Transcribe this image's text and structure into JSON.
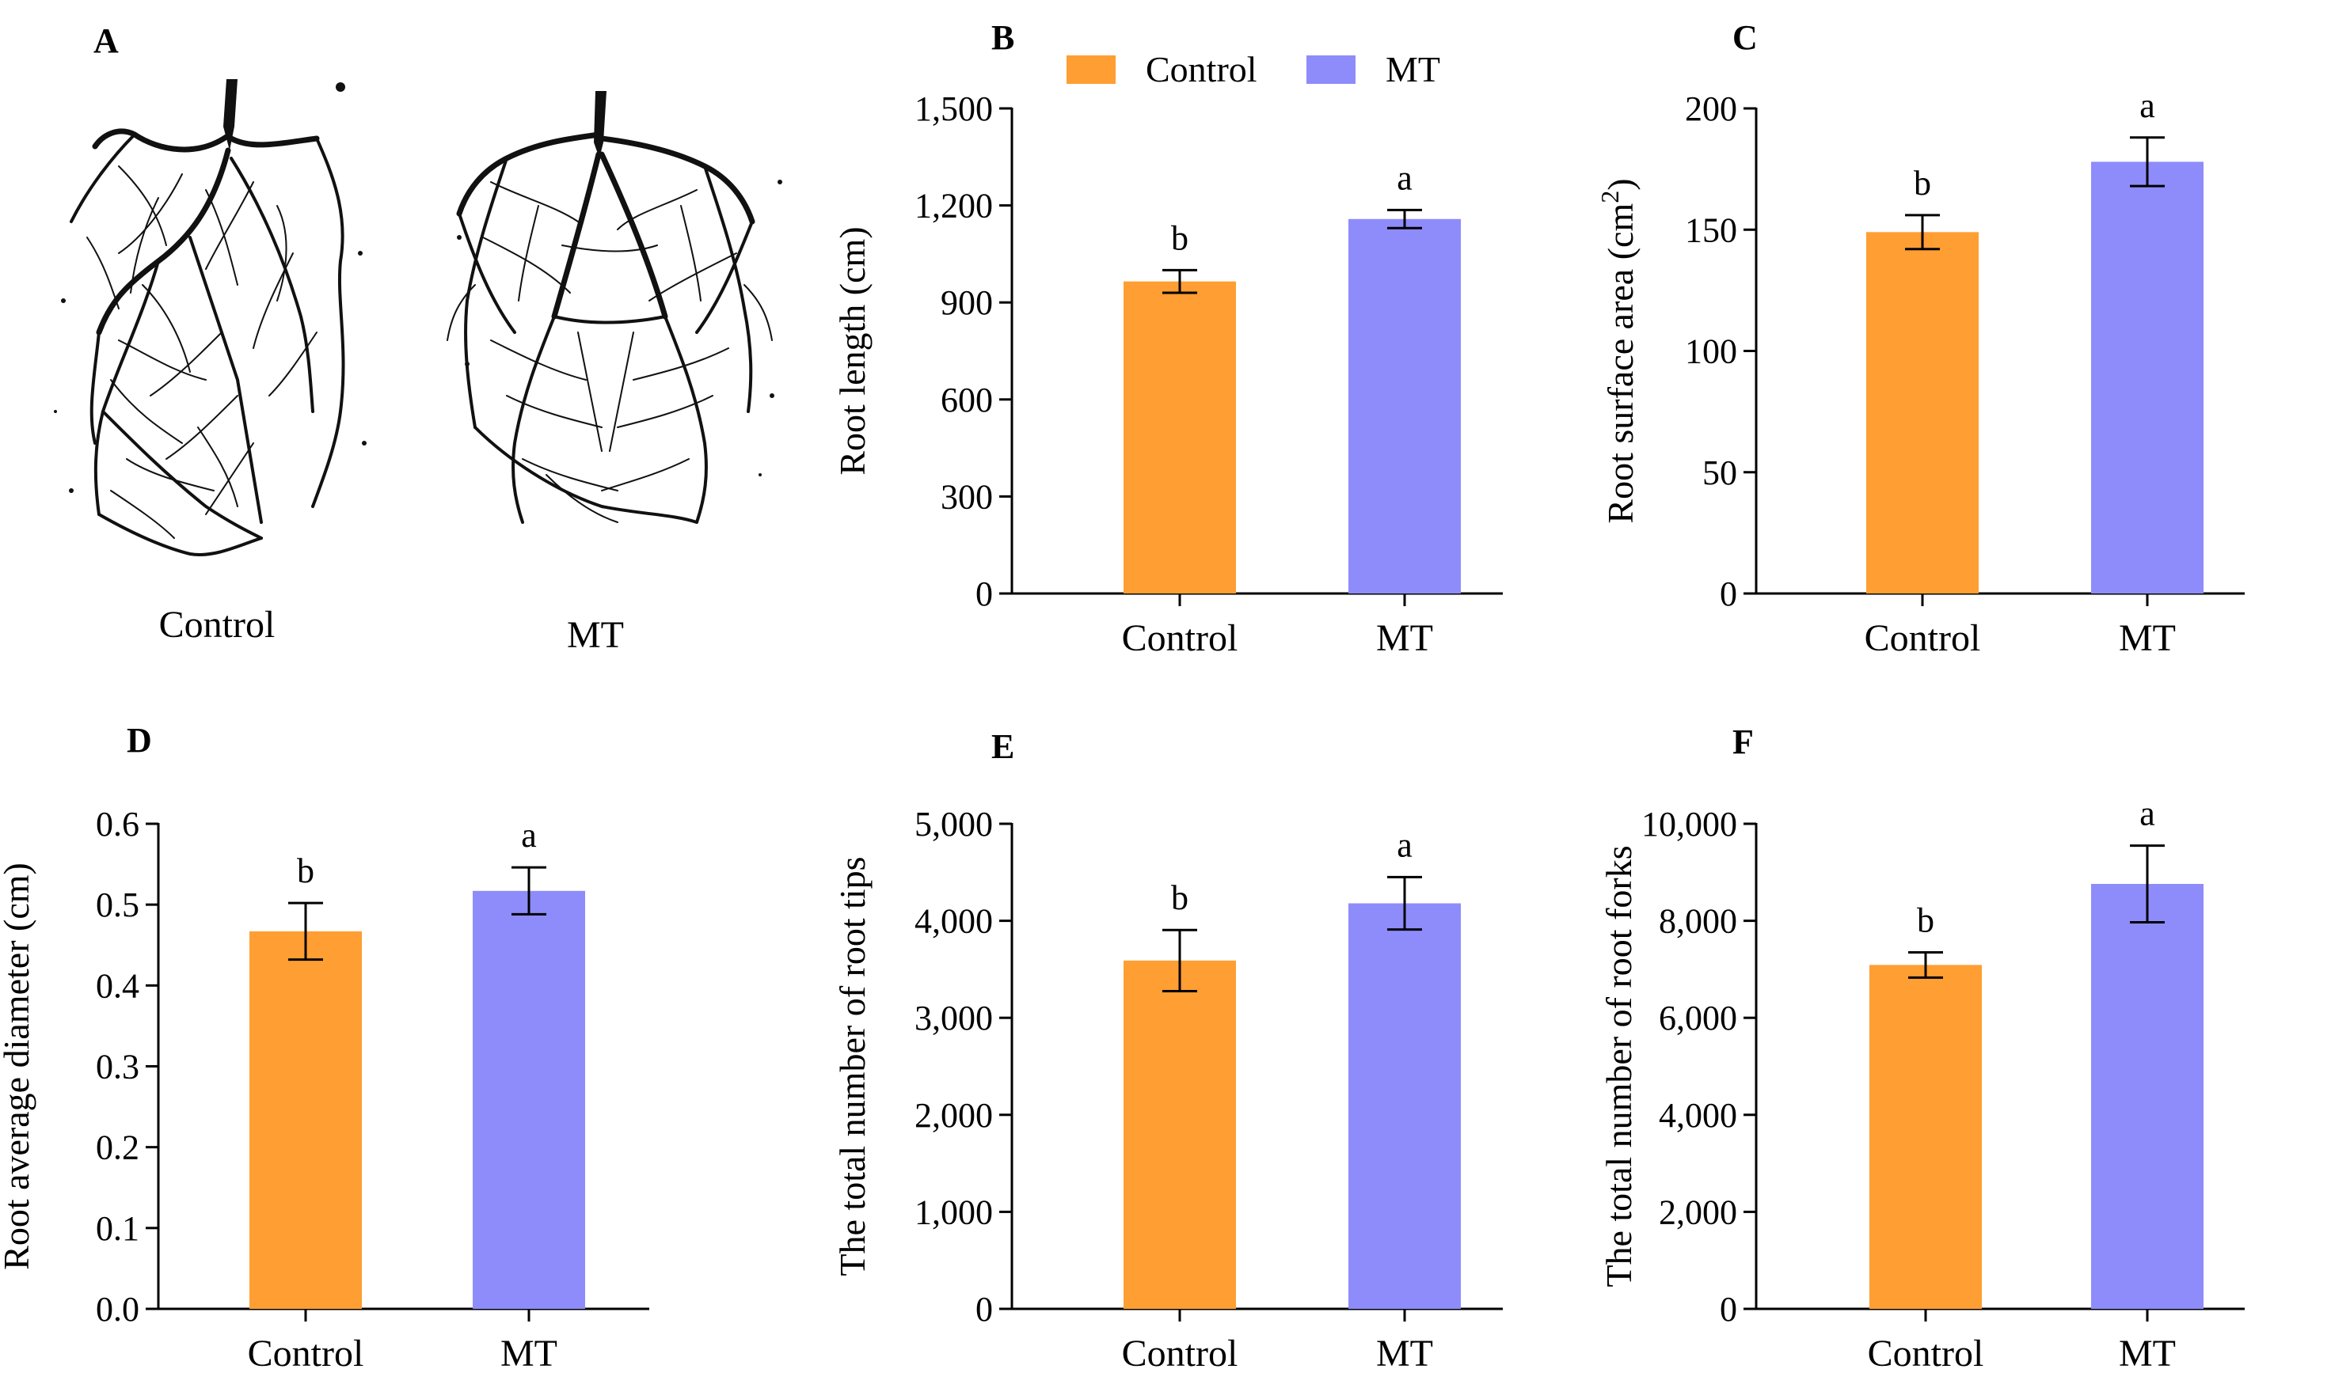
{
  "colors": {
    "control": "#FF9E32",
    "mt": "#8E8CFB",
    "axis": "#000000",
    "root": "#111111"
  },
  "legend": {
    "items": [
      {
        "label": "Control",
        "series": "control"
      },
      {
        "label": "MT",
        "series": "mt"
      }
    ]
  },
  "photo_panel": {
    "letter": "A",
    "labels": [
      "Control",
      "MT"
    ]
  },
  "chart_data": [
    {
      "panel": "B",
      "type": "bar",
      "categories": [
        "Control",
        "MT"
      ],
      "values": [
        965,
        1158
      ],
      "errors": [
        35,
        28
      ],
      "significance": [
        "b",
        "a"
      ],
      "title": "",
      "xlabel": "",
      "ylabel": "Root length (cm)",
      "ylim": [
        0,
        1500
      ],
      "ticks": [
        0,
        300,
        600,
        900,
        1200,
        1500
      ],
      "tick_labels": [
        "0",
        "300",
        "600",
        "900",
        "1,200",
        "1,500"
      ]
    },
    {
      "panel": "C",
      "type": "bar",
      "categories": [
        "Control",
        "MT"
      ],
      "values": [
        149,
        178
      ],
      "errors": [
        7,
        10
      ],
      "significance": [
        "b",
        "a"
      ],
      "title": "",
      "xlabel": "",
      "ylabel": "Root surface area (cm2)",
      "ylim": [
        0,
        200
      ],
      "ticks": [
        0,
        50,
        100,
        150,
        200
      ],
      "tick_labels": [
        "0",
        "50",
        "100",
        "150",
        "200"
      ]
    },
    {
      "panel": "D",
      "type": "bar",
      "categories": [
        "Control",
        "MT"
      ],
      "values": [
        0.467,
        0.517
      ],
      "errors": [
        0.035,
        0.029
      ],
      "significance": [
        "b",
        "a"
      ],
      "title": "",
      "xlabel": "",
      "ylabel": "Root average diameter (cm)",
      "ylim": [
        0,
        0.6
      ],
      "ticks": [
        0,
        0.1,
        0.2,
        0.3,
        0.4,
        0.5,
        0.6
      ],
      "tick_labels": [
        "0.0",
        "0.1",
        "0.2",
        "0.3",
        "0.4",
        "0.5",
        "0.6"
      ]
    },
    {
      "panel": "E",
      "type": "bar",
      "categories": [
        "Control",
        "MT"
      ],
      "values": [
        3590,
        4180
      ],
      "errors": [
        315,
        270
      ],
      "significance": [
        "b",
        "a"
      ],
      "title": "",
      "xlabel": "",
      "ylabel": "The total number of root tips",
      "ylim": [
        0,
        5000
      ],
      "ticks": [
        0,
        1000,
        2000,
        3000,
        4000,
        5000
      ],
      "tick_labels": [
        "0",
        "1,000",
        "2,000",
        "3,000",
        "4,000",
        "5,000"
      ]
    },
    {
      "panel": "F",
      "type": "bar",
      "categories": [
        "Control",
        "MT"
      ],
      "values": [
        7090,
        8760
      ],
      "errors": [
        260,
        790
      ],
      "significance": [
        "b",
        "a"
      ],
      "title": "",
      "xlabel": "",
      "ylabel": "The total number of root forks",
      "ylim": [
        0,
        10000
      ],
      "ticks": [
        0,
        2000,
        4000,
        6000,
        8000,
        10000
      ],
      "tick_labels": [
        "0",
        "2,000",
        "4,000",
        "6,000",
        "8,000",
        "10,000"
      ]
    }
  ]
}
